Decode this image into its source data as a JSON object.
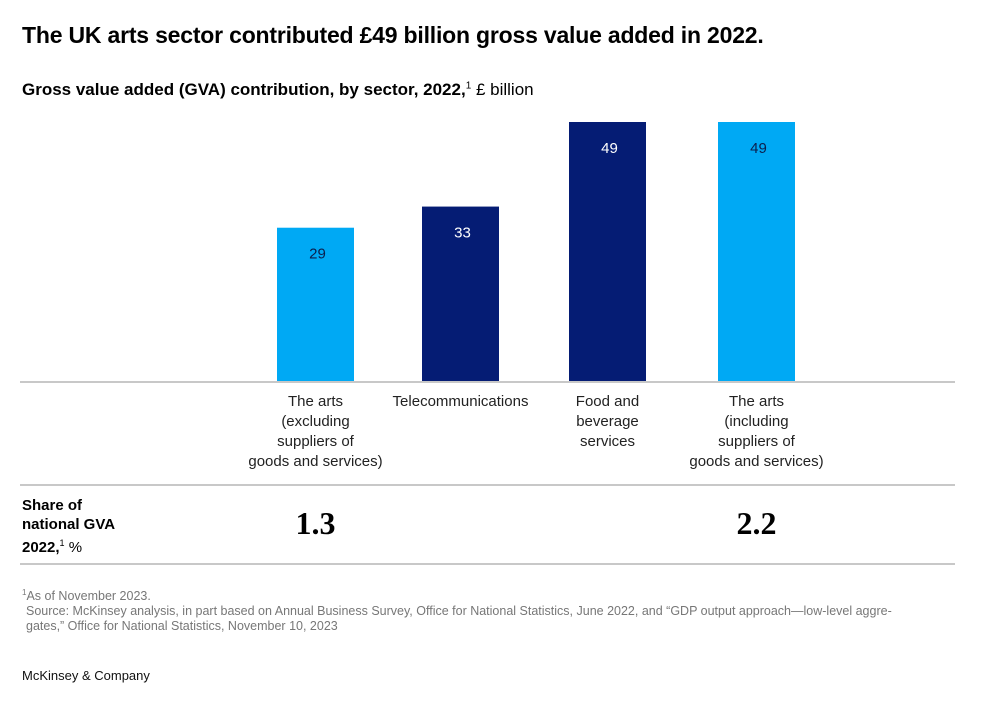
{
  "header": {
    "title": "The UK arts sector contributed £49 billion gross value added in 2022.",
    "subtitle_bold": "Gross value added (GVA) contribution, by sector, 2022,",
    "subtitle_sup": "1",
    "subtitle_unit": " £ billion"
  },
  "colors": {
    "light_blue": "#00A9F4",
    "dark_blue": "#051C74",
    "label_on_light": "#0B1F4D",
    "label_on_dark": "#FFFFFF",
    "rule": "#C8C8C8"
  },
  "chart_data": {
    "type": "bar",
    "title": "Gross value added (GVA) contribution, by sector, 2022, £ billion",
    "xlabel": "",
    "ylabel": "£ billion",
    "ylim": [
      0,
      49
    ],
    "grid": false,
    "categories": [
      "The arts\n(excluding\nsuppliers of\ngoods and services)",
      "Telecommunications",
      "Food and\nbeverage\nservices",
      "The arts\n(including\nsuppliers of\ngoods and services)"
    ],
    "values": [
      29,
      33,
      49,
      49
    ],
    "bar_colors": [
      "light_blue",
      "dark_blue",
      "dark_blue",
      "light_blue"
    ],
    "data_labels": [
      "29",
      "33",
      "49",
      "49"
    ]
  },
  "share_row": {
    "label_line1": "Share of",
    "label_line2": "national GVA",
    "label_line3": "2022,",
    "label_sup": "1",
    "label_unit": " %",
    "values": [
      "1.3",
      "",
      "",
      "2.2"
    ]
  },
  "footnotes": {
    "note_sup": "1",
    "note": "As of November 2023.",
    "source_line1": "Source: McKinsey analysis, in part based on Annual Business Survey, Office for National Statistics, June 2022, and “GDP output approach—low-level aggre-",
    "source_line2": "gates,” Office for National Statistics, November 10, 2023"
  },
  "brand": "McKinsey & Company"
}
